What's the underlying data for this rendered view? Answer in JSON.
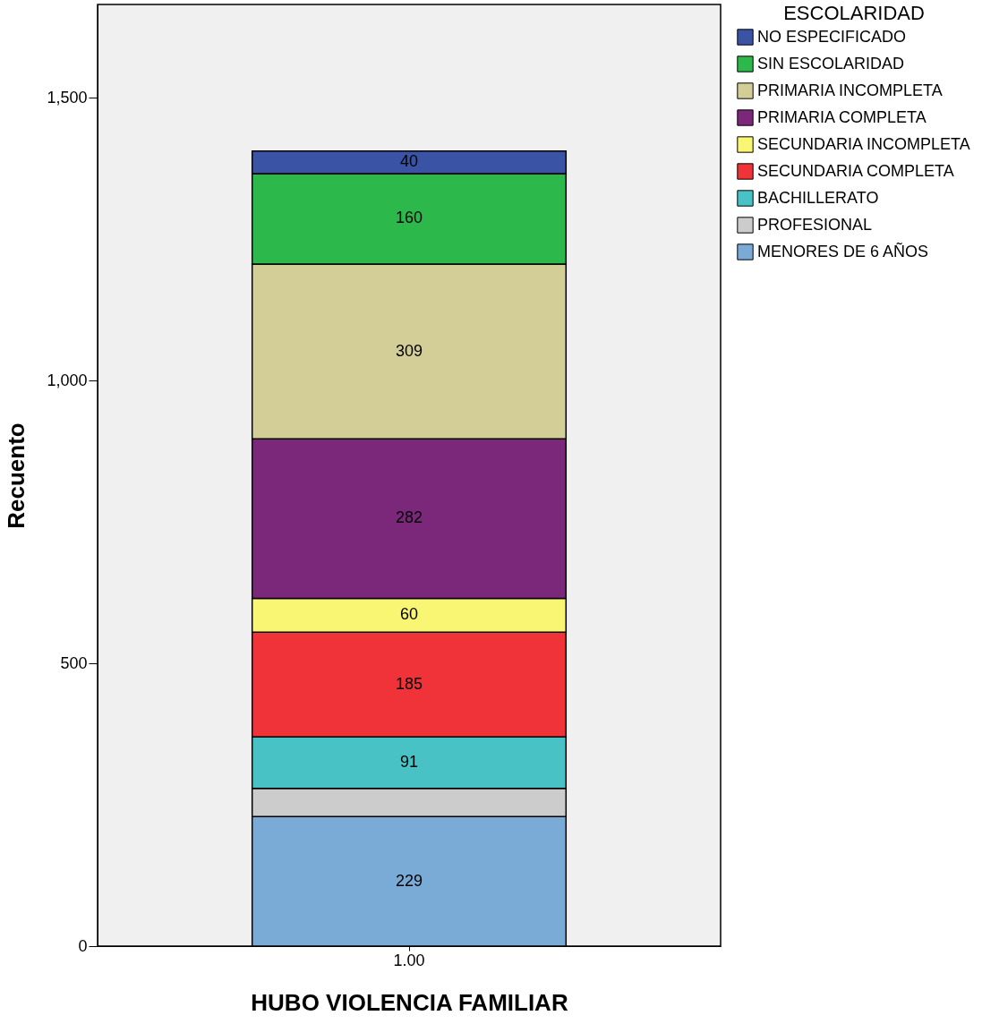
{
  "chart_data": {
    "type": "bar",
    "stacked": true,
    "xlabel": "HUBO VIOLENCIA FAMILIAR",
    "ylabel": "Recuento",
    "legend_title": "ESCOLARIDAD",
    "legend": "top right",
    "grid": false,
    "categories": [
      "1.00"
    ],
    "ylim": [
      0,
      1665
    ],
    "yticks": [
      0,
      500,
      {
        "value": 1000,
        "label": "1,000"
      },
      {
        "value": 1500,
        "label": "1,500"
      }
    ],
    "series": [
      {
        "name": "MENORES DE 6 AÑOS",
        "color": "#7aaad6",
        "values": [
          229
        ],
        "value_labels": [
          "229"
        ]
      },
      {
        "name": "PROFESIONAL",
        "color": "#cccccc",
        "values": [
          50
        ],
        "value_labels": [
          null
        ]
      },
      {
        "name": "BACHILLERATO",
        "color": "#48c2c5",
        "values": [
          91
        ],
        "value_labels": [
          "91"
        ]
      },
      {
        "name": "SECUNDARIA COMPLETA",
        "color": "#ef3338",
        "values": [
          185
        ],
        "value_labels": [
          "185"
        ]
      },
      {
        "name": "SECUNDARIA INCOMPLETA",
        "color": "#f8f673",
        "values": [
          60
        ],
        "value_labels": [
          "60"
        ]
      },
      {
        "name": "PRIMARIA COMPLETA",
        "color": "#7b287b",
        "values": [
          282
        ],
        "value_labels": [
          "282"
        ]
      },
      {
        "name": "PRIMARIA INCOMPLETA",
        "color": "#d3ce97",
        "values": [
          309
        ],
        "value_labels": [
          "309"
        ]
      },
      {
        "name": "SIN ESCOLARIDAD",
        "color": "#2db84b",
        "values": [
          160
        ],
        "value_labels": [
          "160"
        ]
      },
      {
        "name": "NO ESPECIFICADO",
        "color": "#3a53a4",
        "values": [
          40
        ],
        "value_labels": [
          "40"
        ]
      }
    ]
  }
}
